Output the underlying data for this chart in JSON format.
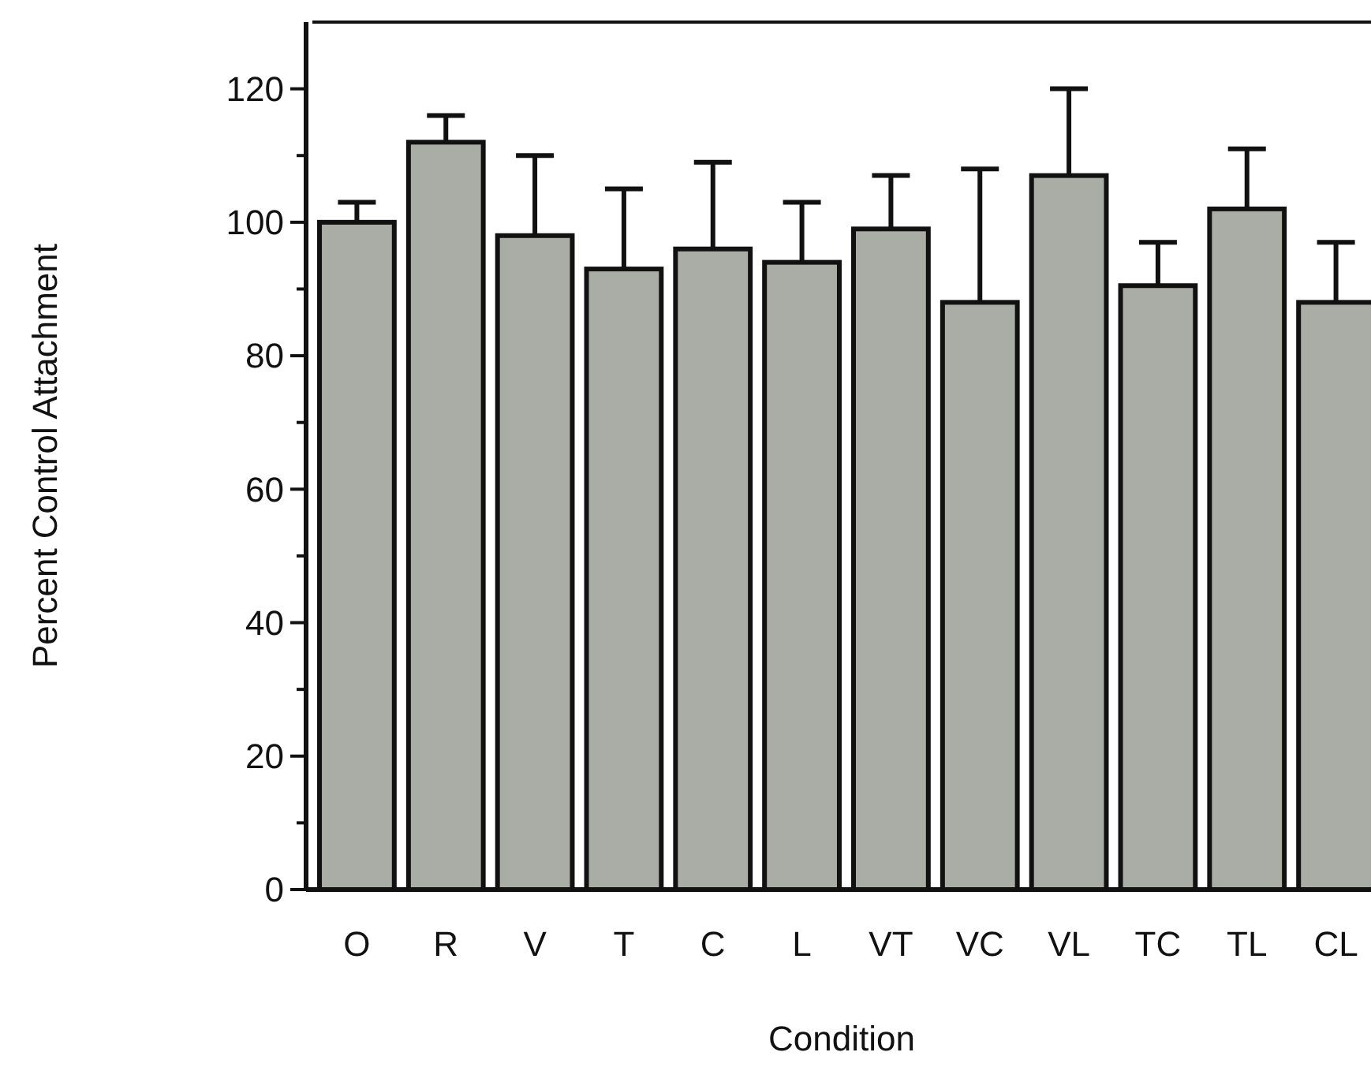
{
  "chart_data": {
    "type": "bar",
    "xlabel": "Condition",
    "ylabel": "Percent Control Attachment",
    "categories": [
      "O",
      "R",
      "V",
      "T",
      "C",
      "L",
      "VT",
      "VC",
      "VL",
      "TC",
      "TL",
      "CL"
    ],
    "values": [
      100,
      112,
      98,
      93,
      96,
      94,
      99,
      88,
      107,
      90.5,
      102,
      88
    ],
    "errors": [
      [
        100,
        103
      ],
      [
        112,
        116
      ],
      [
        98,
        110
      ],
      [
        93,
        105
      ],
      [
        96,
        109
      ],
      [
        94,
        103
      ],
      [
        99,
        107
      ],
      [
        88,
        108
      ],
      [
        107,
        120
      ],
      [
        90.5,
        97
      ],
      [
        102,
        111
      ],
      [
        88,
        97
      ]
    ],
    "color": "#a9ada5",
    "ylim": [
      0,
      130
    ],
    "yticks": [
      0,
      20,
      40,
      60,
      80,
      100,
      120
    ],
    "grid": false
  }
}
